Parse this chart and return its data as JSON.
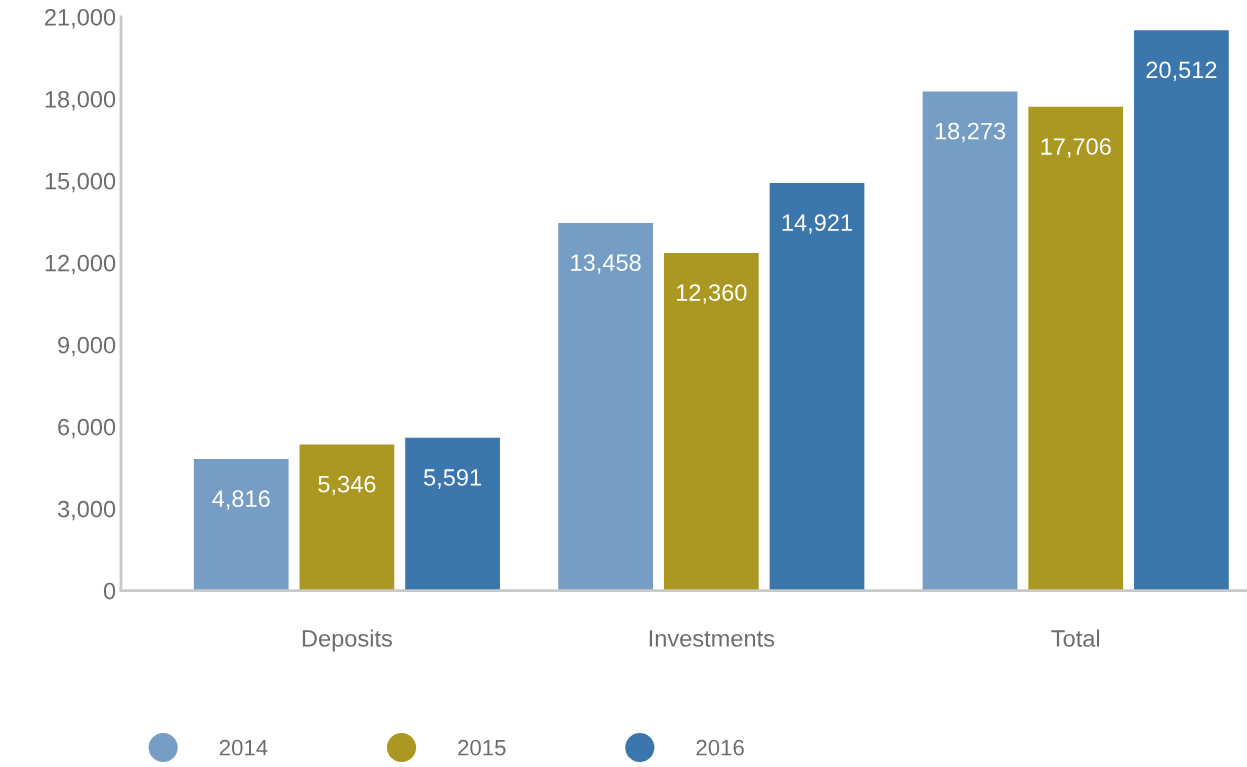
{
  "chart_data": {
    "type": "bar",
    "categories": [
      "Deposits",
      "Investments",
      "Total"
    ],
    "series": [
      {
        "name": "2014",
        "color": "#769ec4",
        "values": [
          4816,
          13458,
          18273
        ],
        "value_labels": [
          "4,816",
          "13,458",
          "18,273"
        ]
      },
      {
        "name": "2015",
        "color": "#ab9822",
        "values": [
          5346,
          12360,
          17706
        ],
        "value_labels": [
          "5,346",
          "12,360",
          "17,706"
        ]
      },
      {
        "name": "2016",
        "color": "#3b76ad",
        "values": [
          5591,
          14921,
          20512
        ],
        "value_labels": [
          "5,591",
          "14,921",
          "20,512"
        ]
      }
    ],
    "ylim": [
      0,
      21000
    ],
    "yticks": [
      0,
      {
        "value": 3000,
        "label": "3,000"
      },
      {
        "value": 6000,
        "label": "6,000"
      },
      {
        "value": 9000,
        "label": "9,000"
      },
      {
        "value": 12000,
        "label": "12,000"
      },
      {
        "value": 15000,
        "label": "15,000"
      },
      {
        "value": 18000,
        "label": "18,000"
      },
      {
        "value": 21000,
        "label": "21,000"
      }
    ],
    "grid": false,
    "legend": "bottom"
  }
}
